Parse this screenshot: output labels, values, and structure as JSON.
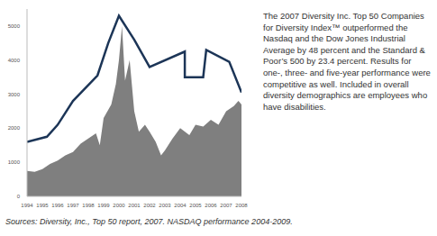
{
  "chart_data": {
    "type": "line",
    "xlim": [
      1994,
      2008
    ],
    "xticks": [
      1994,
      1995,
      1996,
      1997,
      1998,
      1999,
      2000,
      2001,
      2002,
      2003,
      2004,
      2005,
      2006,
      2007,
      2008
    ],
    "ylim": [
      0,
      5500
    ],
    "yticks": [
      0,
      1000,
      2000,
      3000,
      4000,
      5000
    ],
    "grid": false,
    "series": [
      {
        "type": "area",
        "color": "#7f7f7f",
        "x": [
          1994,
          1994.5,
          1995,
          1995.5,
          1996,
          1996.5,
          1997,
          1997.5,
          1998,
          1998.5,
          1998.75,
          1999,
          1999.5,
          1999.8,
          2000,
          2000.2,
          2000.4,
          2000.7,
          2001,
          2001.3,
          2001.7,
          2002,
          2002.4,
          2002.75,
          2003,
          2003.5,
          2004,
          2004.6,
          2005,
          2005.5,
          2006,
          2006.5,
          2007,
          2007.5,
          2007.8,
          2008
        ],
        "values": [
          750,
          720,
          800,
          950,
          1050,
          1200,
          1300,
          1550,
          1700,
          1850,
          1500,
          2300,
          2700,
          3300,
          4000,
          5000,
          3400,
          4000,
          2500,
          1900,
          2100,
          1900,
          1600,
          1200,
          1350,
          1700,
          2000,
          1800,
          2100,
          2050,
          2250,
          2100,
          2500,
          2650,
          2800,
          2700
        ]
      },
      {
        "type": "line",
        "color": "#1c3557",
        "x": [
          1994,
          1995.3,
          1996,
          1997,
          1998.6,
          1999.3,
          2000,
          2001,
          2002,
          2004.3,
          2004.3,
          2005.5,
          2005.7,
          2007.2,
          2008
        ],
        "values": [
          1600,
          1750,
          2100,
          2800,
          3550,
          4500,
          5300,
          4600,
          3800,
          4250,
          3500,
          3500,
          4300,
          3950,
          3050
        ]
      }
    ],
    "annotations": [
      "The 2007 Diversity Inc. Top 50 Companies for Diversity Index™ outperformed the Nasdaq and the Dow Jones Industrial Average by 48 percent and the Standard & Poor’s 500 by 23.4 percent. Results for one-, three- and five-year performance were competitive as well. Included in overall diversity demographics are employees who have disabilities.",
      "Sources: Diversity, Inc., Top 50 report, 2007. NASDAQ performance 2004-2009."
    ]
  }
}
